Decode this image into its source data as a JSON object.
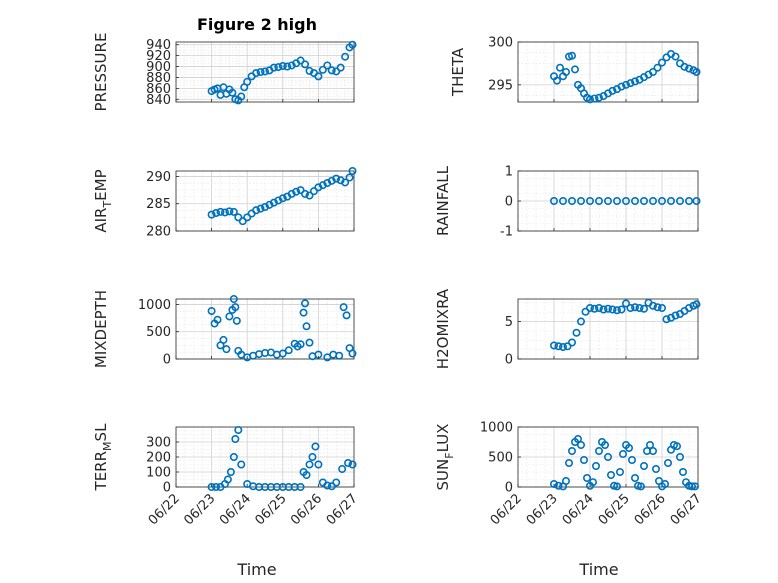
{
  "figure": {
    "title": "Figure 2 high",
    "xlabel": "Time"
  },
  "colors": {
    "series": "#0072bd"
  },
  "chart_data": [
    {
      "type": "scatter",
      "ylabel": "PRESSURE",
      "ylim": [
        835,
        945
      ],
      "yticks": [
        "840",
        "860",
        "880",
        "900",
        "920",
        "940"
      ],
      "xticklabels": "hidden",
      "x": [
        "06/23 00:00",
        "06/23 02:00",
        "06/23 04:00",
        "06/23 06:00",
        "06/23 08:00",
        "06/23 10:00",
        "06/23 12:00",
        "06/23 14:00",
        "06/23 16:00",
        "06/23 18:00",
        "06/23 20:00",
        "06/23 22:00",
        "06/24 00:00",
        "06/24 03:00",
        "06/24 06:00",
        "06/24 09:00",
        "06/24 12:00",
        "06/24 15:00",
        "06/24 18:00",
        "06/24 21:00",
        "06/25 00:00",
        "06/25 03:00",
        "06/25 06:00",
        "06/25 09:00",
        "06/25 12:00",
        "06/25 15:00",
        "06/25 18:00",
        "06/25 21:00",
        "06/26 00:00",
        "06/26 03:00",
        "06/26 06:00",
        "06/26 09:00",
        "06/26 12:00",
        "06/26 15:00",
        "06/26 18:00",
        "06/26 21:00",
        "06/26 23:00"
      ],
      "y": [
        855,
        858,
        860,
        848,
        862,
        850,
        858,
        852,
        840,
        838,
        845,
        862,
        872,
        882,
        888,
        890,
        891,
        893,
        898,
        899,
        901,
        900,
        902,
        906,
        911,
        904,
        892,
        888,
        882,
        894,
        902,
        893,
        891,
        898,
        918,
        935,
        940
      ]
    },
    {
      "type": "scatter",
      "ylabel": "THETA",
      "ylim": [
        293,
        300
      ],
      "yticks": [
        "295",
        "300"
      ],
      "xticklabels": "hidden",
      "x": [
        "06/23 00:00",
        "06/23 02:00",
        "06/23 04:00",
        "06/23 06:00",
        "06/23 08:00",
        "06/23 10:00",
        "06/23 12:00",
        "06/23 14:00",
        "06/23 16:00",
        "06/23 18:00",
        "06/23 20:00",
        "06/23 22:00",
        "06/24 00:00",
        "06/24 03:00",
        "06/24 06:00",
        "06/24 09:00",
        "06/24 12:00",
        "06/24 15:00",
        "06/24 18:00",
        "06/24 21:00",
        "06/25 00:00",
        "06/25 03:00",
        "06/25 06:00",
        "06/25 09:00",
        "06/25 12:00",
        "06/25 15:00",
        "06/25 18:00",
        "06/25 21:00",
        "06/26 00:00",
        "06/26 03:00",
        "06/26 06:00",
        "06/26 09:00",
        "06/26 12:00",
        "06/26 15:00",
        "06/26 18:00",
        "06/26 21:00",
        "06/26 23:00"
      ],
      "y": [
        296,
        295.5,
        297,
        296,
        296.5,
        298.3,
        298.4,
        296.8,
        295,
        294.6,
        294,
        293.5,
        293.3,
        293.4,
        293.5,
        293.7,
        294,
        294.3,
        294.5,
        294.8,
        295,
        295.2,
        295.4,
        295.6,
        295.9,
        296.2,
        296.5,
        297,
        297.6,
        298.2,
        298.6,
        298.3,
        297.5,
        297.1,
        296.9,
        296.7,
        296.5
      ]
    },
    {
      "type": "scatter",
      "ylabel": "AIR_TEMP",
      "ylim": [
        280,
        291
      ],
      "yticks": [
        "280",
        "285",
        "290"
      ],
      "xticklabels": "hidden",
      "x": [
        "06/23 00:00",
        "06/23 03:00",
        "06/23 06:00",
        "06/23 09:00",
        "06/23 12:00",
        "06/23 15:00",
        "06/23 18:00",
        "06/23 21:00",
        "06/24 00:00",
        "06/24 03:00",
        "06/24 06:00",
        "06/24 09:00",
        "06/24 12:00",
        "06/24 15:00",
        "06/24 18:00",
        "06/24 21:00",
        "06/25 00:00",
        "06/25 03:00",
        "06/25 06:00",
        "06/25 09:00",
        "06/25 12:00",
        "06/25 15:00",
        "06/25 18:00",
        "06/25 21:00",
        "06/26 00:00",
        "06/26 03:00",
        "06/26 06:00",
        "06/26 09:00",
        "06/26 12:00",
        "06/26 15:00",
        "06/26 18:00",
        "06/26 21:00",
        "06/26 23:00"
      ],
      "y": [
        283,
        283.3,
        283.5,
        283.4,
        283.6,
        283.5,
        282.5,
        281.8,
        282.5,
        283.2,
        283.8,
        284.1,
        284.4,
        284.8,
        285.2,
        285.6,
        286,
        286.3,
        286.8,
        287.2,
        287.5,
        286.8,
        286.5,
        287.3,
        288,
        288.4,
        288.8,
        289.2,
        289.6,
        289.3,
        288.9,
        289.8,
        291
      ]
    },
    {
      "type": "scatter",
      "ylabel": "RAINFALL",
      "ylim": [
        -1,
        1
      ],
      "yticks": [
        "-1",
        "0",
        "1"
      ],
      "xticklabels": "hidden",
      "x": [
        "06/23 00:00",
        "06/23 06:00",
        "06/23 12:00",
        "06/23 18:00",
        "06/24 00:00",
        "06/24 06:00",
        "06/24 12:00",
        "06/24 18:00",
        "06/25 00:00",
        "06/25 06:00",
        "06/25 12:00",
        "06/25 18:00",
        "06/26 00:00",
        "06/26 06:00",
        "06/26 12:00",
        "06/26 18:00",
        "06/26 23:00"
      ],
      "y": [
        0,
        0,
        0,
        0,
        0,
        0,
        0,
        0,
        0,
        0,
        0,
        0,
        0,
        0,
        0,
        0,
        0
      ]
    },
    {
      "type": "scatter",
      "ylabel": "MIXDEPTH",
      "ylim": [
        0,
        1100
      ],
      "yticks": [
        "0",
        "500",
        "1000"
      ],
      "xticklabels": "hidden",
      "x": [
        "06/23 00:00",
        "06/23 02:00",
        "06/23 04:00",
        "06/23 06:00",
        "06/23 08:00",
        "06/23 10:00",
        "06/23 12:00",
        "06/23 14:00",
        "06/23 15:00",
        "06/23 16:00",
        "06/23 17:00",
        "06/23 18:00",
        "06/23 20:00",
        "06/24 00:00",
        "06/24 04:00",
        "06/24 08:00",
        "06/24 12:00",
        "06/24 16:00",
        "06/24 20:00",
        "06/25 00:00",
        "06/25 04:00",
        "06/25 08:00",
        "06/25 10:00",
        "06/25 12:00",
        "06/25 14:00",
        "06/25 15:00",
        "06/25 16:00",
        "06/25 18:00",
        "06/25 20:00",
        "06/26 00:00",
        "06/26 06:00",
        "06/26 10:00",
        "06/26 14:00",
        "06/26 17:00",
        "06/26 19:00",
        "06/26 21:00",
        "06/26 23:00"
      ],
      "y": [
        880,
        650,
        720,
        250,
        350,
        180,
        780,
        900,
        1100,
        950,
        700,
        150,
        80,
        30,
        60,
        90,
        110,
        120,
        80,
        100,
        160,
        280,
        230,
        270,
        850,
        1020,
        600,
        300,
        50,
        80,
        30,
        80,
        60,
        950,
        800,
        200,
        100
      ]
    },
    {
      "type": "scatter",
      "ylabel": "H2OMIXRA",
      "ylim": [
        0,
        8
      ],
      "yticks": [
        "0",
        "5"
      ],
      "xticklabels": "hidden",
      "x": [
        "06/23 00:00",
        "06/23 03:00",
        "06/23 06:00",
        "06/23 09:00",
        "06/23 12:00",
        "06/23 15:00",
        "06/23 18:00",
        "06/23 21:00",
        "06/24 00:00",
        "06/24 03:00",
        "06/24 06:00",
        "06/24 09:00",
        "06/24 12:00",
        "06/24 15:00",
        "06/24 18:00",
        "06/24 21:00",
        "06/25 00:00",
        "06/25 03:00",
        "06/25 06:00",
        "06/25 09:00",
        "06/25 12:00",
        "06/25 15:00",
        "06/25 18:00",
        "06/25 21:00",
        "06/26 00:00",
        "06/26 03:00",
        "06/26 06:00",
        "06/26 09:00",
        "06/26 12:00",
        "06/26 15:00",
        "06/26 18:00",
        "06/26 21:00",
        "06/26 23:00"
      ],
      "y": [
        1.8,
        1.7,
        1.6,
        1.7,
        2.2,
        3.5,
        5,
        6.3,
        6.8,
        6.7,
        6.8,
        6.6,
        6.7,
        6.6,
        6.5,
        6.6,
        7.4,
        6.8,
        6.9,
        6.8,
        6.7,
        7.5,
        7.1,
        6.9,
        6.8,
        5.3,
        5.5,
        5.8,
        6,
        6.4,
        6.8,
        7.1,
        7.3
      ]
    },
    {
      "type": "scatter",
      "ylabel": "TERR_MSL",
      "ylim": [
        0,
        400
      ],
      "yticks": [
        "0",
        "100",
        "200",
        "300"
      ],
      "xticklabels": [
        "06/22",
        "06/23",
        "06/24",
        "06/25",
        "06/26",
        "06/27"
      ],
      "x": [
        "06/23 00:00",
        "06/23 03:00",
        "06/23 06:00",
        "06/23 09:00",
        "06/23 11:00",
        "06/23 13:00",
        "06/23 15:00",
        "06/23 16:00",
        "06/23 18:00",
        "06/23 20:00",
        "06/24 00:00",
        "06/24 04:00",
        "06/24 08:00",
        "06/24 12:00",
        "06/24 16:00",
        "06/24 20:00",
        "06/25 00:00",
        "06/25 04:00",
        "06/25 08:00",
        "06/25 12:00",
        "06/25 14:00",
        "06/25 16:00",
        "06/25 18:00",
        "06/25 20:00",
        "06/25 22:00",
        "06/26 00:00",
        "06/26 03:00",
        "06/26 06:00",
        "06/26 09:00",
        "06/26 12:00",
        "06/26 16:00",
        "06/26 20:00",
        "06/26 23:00"
      ],
      "y": [
        0,
        0,
        0,
        20,
        50,
        100,
        200,
        320,
        380,
        150,
        20,
        5,
        0,
        0,
        0,
        0,
        0,
        0,
        0,
        0,
        100,
        80,
        150,
        200,
        270,
        150,
        30,
        10,
        5,
        30,
        120,
        160,
        150
      ]
    },
    {
      "type": "scatter",
      "ylabel": "SUN_FLUX",
      "ylim": [
        0,
        1000
      ],
      "yticks": [
        "0",
        "500",
        "1000"
      ],
      "xticklabels": [
        "06/22",
        "06/23",
        "06/24",
        "06/25",
        "06/26",
        "06/27"
      ],
      "x": [
        "06/23 00:00",
        "06/23 03:00",
        "06/23 06:00",
        "06/23 08:00",
        "06/23 10:00",
        "06/23 12:00",
        "06/23 14:00",
        "06/23 16:00",
        "06/23 18:00",
        "06/23 20:00",
        "06/23 22:00",
        "06/24 00:00",
        "06/24 02:00",
        "06/24 04:00",
        "06/24 06:00",
        "06/24 08:00",
        "06/24 10:00",
        "06/24 12:00",
        "06/24 14:00",
        "06/24 16:00",
        "06/24 18:00",
        "06/24 20:00",
        "06/24 22:00",
        "06/25 00:00",
        "06/25 02:00",
        "06/25 04:00",
        "06/25 06:00",
        "06/25 08:00",
        "06/25 10:00",
        "06/25 12:00",
        "06/25 14:00",
        "06/25 16:00",
        "06/25 18:00",
        "06/25 20:00",
        "06/25 22:00",
        "06/26 00:00",
        "06/26 02:00",
        "06/26 04:00",
        "06/26 06:00",
        "06/26 08:00",
        "06/26 10:00",
        "06/26 12:00",
        "06/26 14:00",
        "06/26 16:00",
        "06/26 18:00",
        "06/26 20:00",
        "06/26 22:00"
      ],
      "y": [
        50,
        20,
        10,
        100,
        400,
        600,
        750,
        800,
        700,
        450,
        150,
        20,
        80,
        350,
        600,
        750,
        700,
        500,
        200,
        20,
        10,
        250,
        550,
        700,
        650,
        450,
        150,
        20,
        10,
        350,
        600,
        700,
        600,
        300,
        100,
        10,
        50,
        400,
        620,
        700,
        680,
        500,
        250,
        80,
        20,
        10,
        10
      ]
    }
  ]
}
